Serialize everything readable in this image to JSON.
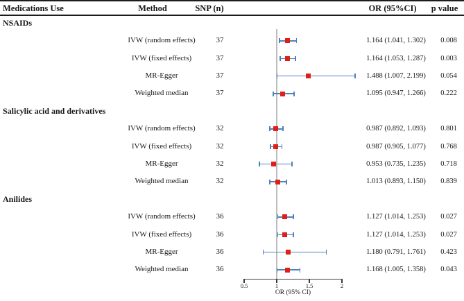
{
  "colors": {
    "bar_blue": "#4f81bd",
    "marker_red": "#e01f1a",
    "reference_line": "#bdbdbd",
    "axis_line": "#3a3a3a",
    "rule_black": "#1c1c1c"
  },
  "chart_data": {
    "type": "forest",
    "title": "",
    "xlabel": "OR (95% CI)",
    "header": {
      "medications_use": "Medications Use",
      "method": "Method",
      "snp": "SNP (n)",
      "or": "OR (95%CI)",
      "p": "p value"
    },
    "axis": {
      "min": 0.5,
      "max": 2.25,
      "reference_line": 1,
      "ticks": [
        {
          "value": 0.5,
          "label": "0.5"
        },
        {
          "value": 1,
          "label": "1"
        },
        {
          "value": 1.5,
          "label": "1.5"
        },
        {
          "value": 2,
          "label": "2"
        }
      ]
    },
    "groups": [
      {
        "name": "NSAIDs",
        "rows": [
          {
            "method": "IVW (random effects)",
            "snp": "37",
            "or": 1.164,
            "ci_low": 1.041,
            "ci_high": 1.302,
            "or_text": "1.164 (1.041, 1.302)",
            "p": "0.008"
          },
          {
            "method": "IVW (fixed effects)",
            "snp": "37",
            "or": 1.164,
            "ci_low": 1.053,
            "ci_high": 1.287,
            "or_text": "1.164 (1.053, 1.287)",
            "p": "0.003"
          },
          {
            "method": "MR-Egger",
            "snp": "37",
            "or": 1.488,
            "ci_low": 1.007,
            "ci_high": 2.199,
            "or_text": "1.488 (1.007, 2.199)",
            "p": "0.054"
          },
          {
            "method": "Weighted median",
            "snp": "37",
            "or": 1.095,
            "ci_low": 0.947,
            "ci_high": 1.266,
            "or_text": "1.095 (0.947, 1.266)",
            "p": "0.222"
          }
        ]
      },
      {
        "name": "Salicylic acid and derivatives",
        "rows": [
          {
            "method": "IVW (random effects)",
            "snp": "32",
            "or": 0.987,
            "ci_low": 0.892,
            "ci_high": 1.093,
            "or_text": "0.987 (0.892, 1.093)",
            "p": "0.801"
          },
          {
            "method": "IVW (fixed effects)",
            "snp": "32",
            "or": 0.987,
            "ci_low": 0.905,
            "ci_high": 1.077,
            "or_text": "0.987 (0.905, 1.077)",
            "p": "0.768"
          },
          {
            "method": "MR-Egger",
            "snp": "32",
            "or": 0.953,
            "ci_low": 0.735,
            "ci_high": 1.235,
            "or_text": "0.953 (0.735, 1.235)",
            "p": "0.718"
          },
          {
            "method": "Weighted median",
            "snp": "32",
            "or": 1.013,
            "ci_low": 0.893,
            "ci_high": 1.15,
            "or_text": "1.013 (0.893, 1.150)",
            "p": "0.839"
          }
        ]
      },
      {
        "name": "Anilides",
        "rows": [
          {
            "method": "IVW (random effects)",
            "snp": "36",
            "or": 1.127,
            "ci_low": 1.014,
            "ci_high": 1.253,
            "or_text": "1.127 (1.014, 1.253)",
            "p": "0.027"
          },
          {
            "method": "IVW (fixed effects)",
            "snp": "36",
            "or": 1.127,
            "ci_low": 1.014,
            "ci_high": 1.253,
            "or_text": "1.127 (1.014, 1.253)",
            "p": "0.027"
          },
          {
            "method": "MR-Egger",
            "snp": "36",
            "or": 1.18,
            "ci_low": 0.791,
            "ci_high": 1.761,
            "or_text": "1.180 (0.791, 1.761)",
            "p": "0.423"
          },
          {
            "method": "Weighted median",
            "snp": "36",
            "or": 1.168,
            "ci_low": 1.005,
            "ci_high": 1.358,
            "or_text": "1.168 (1.005, 1.358)",
            "p": "0.043"
          }
        ]
      }
    ]
  }
}
